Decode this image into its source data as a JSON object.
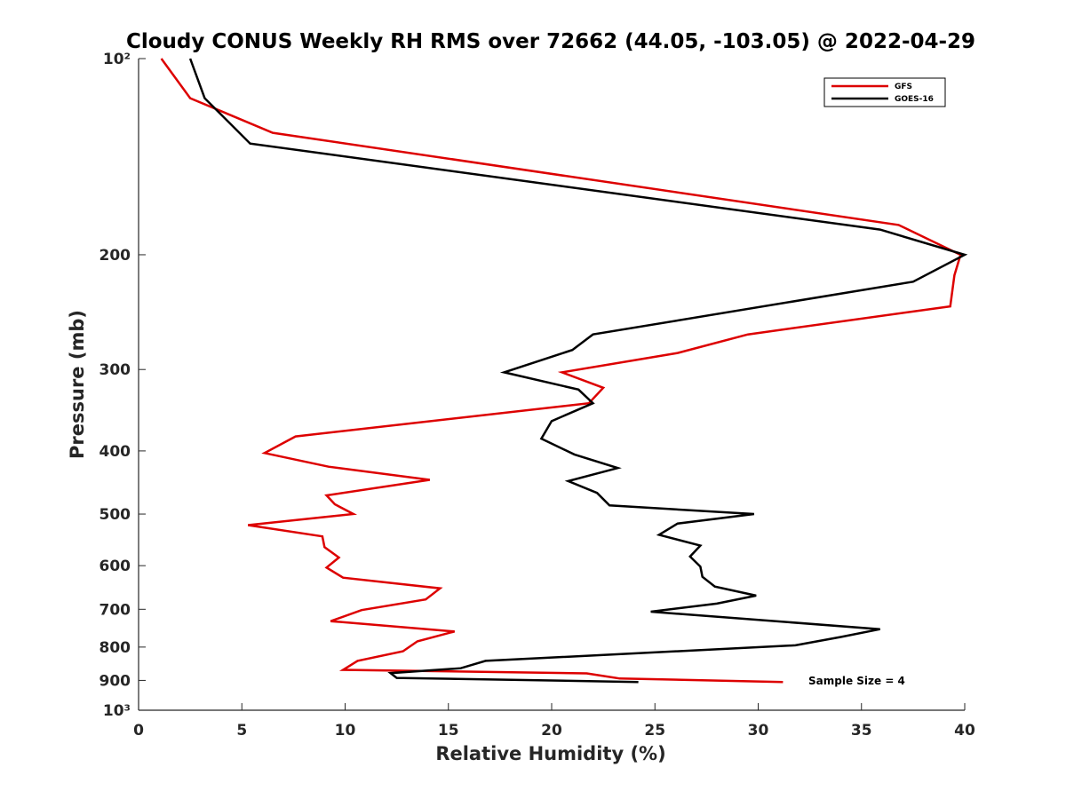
{
  "chart_data": {
    "type": "line",
    "title": "Cloudy CONUS Weekly RH RMS over 72662 (44.05, -103.05) @ 2022-04-29",
    "xlabel": "Relative Humidity (%)",
    "ylabel": "Pressure (mb)",
    "xlim": [
      0,
      40
    ],
    "ylim": [
      100,
      1000
    ],
    "y_scale": "log",
    "y_reversed": true,
    "grid": false,
    "legend_position": "top-right",
    "x_ticks": [
      0,
      5,
      10,
      15,
      20,
      25,
      30,
      35,
      40
    ],
    "x_tick_labels": [
      "0",
      "5",
      "10",
      "15",
      "20",
      "25",
      "30",
      "35",
      "40"
    ],
    "y_ticks": [
      100,
      200,
      300,
      400,
      500,
      600,
      700,
      800,
      900,
      1000
    ],
    "y_tick_labels": [
      "10²",
      "200",
      "300",
      "400",
      "500",
      "600",
      "700",
      "800",
      "900",
      "10³"
    ],
    "series": [
      {
        "name": "GFS",
        "color": "#dd0000",
        "points": [
          [
            1.1,
            100
          ],
          [
            2.5,
            115
          ],
          [
            6.5,
            130
          ],
          [
            36.8,
            180
          ],
          [
            39.8,
            200
          ],
          [
            39.5,
            215
          ],
          [
            39.3,
            240
          ],
          [
            29.5,
            265
          ],
          [
            26.1,
            283
          ],
          [
            20.5,
            303
          ],
          [
            22.5,
            320
          ],
          [
            21.8,
            338
          ],
          [
            7.6,
            380
          ],
          [
            6.1,
            403
          ],
          [
            9.2,
            423
          ],
          [
            14.1,
            443
          ],
          [
            9.1,
            468
          ],
          [
            9.5,
            483
          ],
          [
            10.4,
            500
          ],
          [
            5.3,
            520
          ],
          [
            8.9,
            541
          ],
          [
            9.0,
            562
          ],
          [
            9.7,
            583
          ],
          [
            9.1,
            604
          ],
          [
            9.9,
            626
          ],
          [
            14.6,
            650
          ],
          [
            13.9,
            676
          ],
          [
            10.8,
            702
          ],
          [
            9.3,
            730
          ],
          [
            15.3,
            757
          ],
          [
            13.5,
            784
          ],
          [
            12.8,
            812
          ],
          [
            10.6,
            840
          ],
          [
            9.9,
            867
          ],
          [
            21.7,
            878
          ],
          [
            23.3,
            894
          ],
          [
            31.2,
            905
          ]
        ]
      },
      {
        "name": "GOES-16",
        "color": "#000000",
        "points": [
          [
            2.5,
            100
          ],
          [
            3.2,
            115
          ],
          [
            5.4,
            135
          ],
          [
            35.9,
            183
          ],
          [
            40.0,
            200
          ],
          [
            37.5,
            220
          ],
          [
            22.0,
            265
          ],
          [
            21.0,
            280
          ],
          [
            17.7,
            303
          ],
          [
            21.3,
            322
          ],
          [
            22.0,
            338
          ],
          [
            20.0,
            360
          ],
          [
            19.5,
            383
          ],
          [
            21.1,
            405
          ],
          [
            23.2,
            425
          ],
          [
            20.8,
            445
          ],
          [
            22.2,
            464
          ],
          [
            22.8,
            485
          ],
          [
            29.8,
            500
          ],
          [
            26.1,
            517
          ],
          [
            25.2,
            538
          ],
          [
            27.2,
            559
          ],
          [
            26.7,
            581
          ],
          [
            27.2,
            602
          ],
          [
            27.3,
            624
          ],
          [
            27.9,
            646
          ],
          [
            29.9,
            667
          ],
          [
            28.0,
            686
          ],
          [
            24.8,
            706
          ],
          [
            35.9,
            751
          ],
          [
            34.0,
            772
          ],
          [
            31.8,
            795
          ],
          [
            16.8,
            840
          ],
          [
            15.6,
            862
          ],
          [
            12.2,
            877
          ],
          [
            12.5,
            892
          ],
          [
            24.2,
            905
          ]
        ]
      }
    ],
    "annotation": "Sample Size = 4"
  }
}
